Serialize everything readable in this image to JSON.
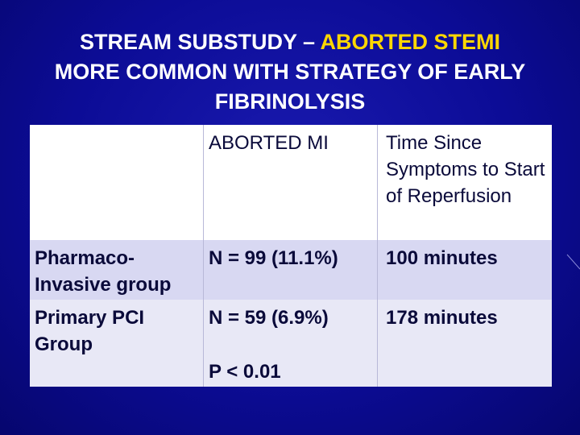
{
  "title": {
    "part1": "STREAM SUBSTUDY –",
    "highlight": "ABORTED STEMI",
    "part2": "MORE COMMON WITH STRATEGY OF EARLY FIBRINOLYSIS"
  },
  "table": {
    "header": [
      "ABORTED MI",
      "Time Since Symptoms to Start of Reperfusion"
    ],
    "rows": [
      [
        "Pharmaco-Invasive group",
        "N = 99 (11.1%)",
        "100 minutes"
      ],
      [
        "Primary PCI Group",
        "N = 59 (6.9%)",
        "178 minutes"
      ]
    ],
    "note": "P < 0.01"
  }
}
